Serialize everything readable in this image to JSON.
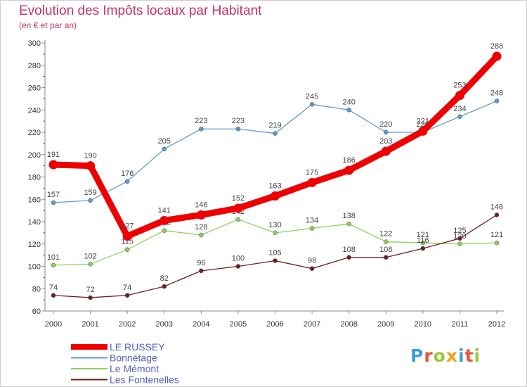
{
  "title": "Evolution des Impôts locaux par Habitant",
  "subtitle": "(en € et par an)",
  "logo": {
    "text": "Proxiti",
    "colors": [
      "#3aa0d8",
      "#e8543c",
      "#9bc93a",
      "#f4a21e",
      "#3aa0d8",
      "#e8543c",
      "#9bc93a"
    ]
  },
  "chart_data": {
    "type": "line",
    "title": "Evolution des Impôts locaux par Habitant",
    "subtitle": "(en € et par an)",
    "xlabel": "",
    "ylabel": "",
    "x": [
      "2000",
      "2001",
      "2002",
      "2003",
      "2004",
      "2005",
      "2006",
      "2007",
      "2008",
      "2009",
      "2010",
      "2011",
      "2012"
    ],
    "ylim": [
      60,
      300
    ],
    "yticks": [
      60,
      80,
      100,
      120,
      140,
      160,
      180,
      200,
      220,
      240,
      260,
      280,
      300
    ],
    "grid": false,
    "legend_position": "bottom-left",
    "series": [
      {
        "name": "LE RUSSEY",
        "color": "#ee0000",
        "emphasis": true,
        "values": [
          191,
          190,
          127,
          141,
          146,
          152,
          163,
          175,
          186,
          203,
          221,
          253,
          288
        ],
        "labels": [
          "191",
          "190",
          "127",
          "141",
          "146",
          "152",
          "163",
          "175",
          "186",
          "203",
          "221",
          "253",
          "288"
        ]
      },
      {
        "name": "Bonnétage",
        "color": "#5e9bd0",
        "emphasis": false,
        "values": [
          157,
          159,
          176,
          205,
          223,
          223,
          219,
          245,
          240,
          220,
          220,
          234,
          248
        ],
        "labels": [
          "157",
          "159",
          "176",
          "205",
          "223",
          "223",
          "219",
          "245",
          "240",
          "220",
          "220",
          "234",
          "248"
        ]
      },
      {
        "name": "Le Mémont",
        "color": "#8ed05e",
        "emphasis": false,
        "values": [
          101,
          102,
          115,
          132,
          128,
          142,
          130,
          134,
          138,
          122,
          121,
          120,
          121
        ],
        "labels": [
          "101",
          "102",
          "115",
          "132",
          "128",
          "142",
          "130",
          "134",
          "138",
          "122",
          "121",
          "120",
          "121"
        ]
      },
      {
        "name": "Les Fontenelles",
        "color": "#6e2020",
        "emphasis": false,
        "values": [
          74,
          72,
          74,
          82,
          96,
          100,
          105,
          98,
          108,
          108,
          116,
          125,
          146
        ],
        "labels": [
          "74",
          "72",
          "74",
          "82",
          "96",
          "100",
          "105",
          "98",
          "108",
          "108",
          "116",
          "125",
          "146"
        ]
      }
    ]
  }
}
